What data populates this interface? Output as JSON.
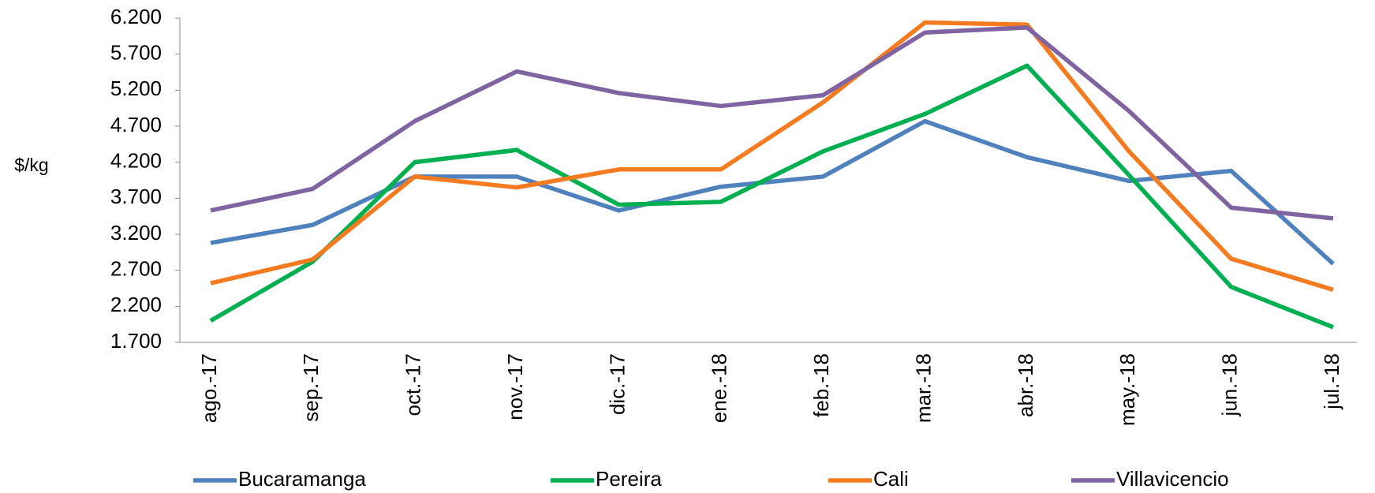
{
  "chart_data": {
    "type": "line",
    "ylabel": "$/kg",
    "categories": [
      "ago.-17",
      "sep.-17",
      "oct.-17",
      "nov.-17",
      "dic.-17",
      "ene.-18",
      "feb.-18",
      "mar.-18",
      "abr.-18",
      "may.-18",
      "jun.-18",
      "jul.-18"
    ],
    "series": [
      {
        "name": "Bucaramanga",
        "color": "#4f81bd",
        "values": [
          3080,
          3330,
          4000,
          4000,
          3530,
          3860,
          4000,
          4770,
          4270,
          3940,
          4080,
          2790
        ]
      },
      {
        "name": "Pereira",
        "color": "#00b050",
        "values": [
          2000,
          2820,
          4200,
          4370,
          3610,
          3650,
          4350,
          4870,
          5540,
          4020,
          2470,
          1910
        ]
      },
      {
        "name": "Cali",
        "color": "#f47b20",
        "values": [
          2520,
          2850,
          4000,
          3850,
          4100,
          4100,
          5030,
          6140,
          6110,
          4350,
          2860,
          2430
        ]
      },
      {
        "name": "Villavicencio",
        "color": "#8064a2",
        "values": [
          3530,
          3830,
          4770,
          5460,
          5160,
          4980,
          5130,
          6000,
          6070,
          4910,
          3570,
          3420
        ]
      }
    ],
    "ylim": [
      1700,
      6200
    ],
    "yticks": [
      {
        "value": 1700,
        "label": "1.700"
      },
      {
        "value": 2200,
        "label": "2.200"
      },
      {
        "value": 2700,
        "label": "2.700"
      },
      {
        "value": 3200,
        "label": "3.200"
      },
      {
        "value": 3700,
        "label": "3.700"
      },
      {
        "value": 4200,
        "label": "4.200"
      },
      {
        "value": 4700,
        "label": "4.700"
      },
      {
        "value": 5200,
        "label": "5.200"
      },
      {
        "value": 5700,
        "label": "5.700"
      },
      {
        "value": 6200,
        "label": "6.200"
      }
    ],
    "legend": "bottom"
  }
}
